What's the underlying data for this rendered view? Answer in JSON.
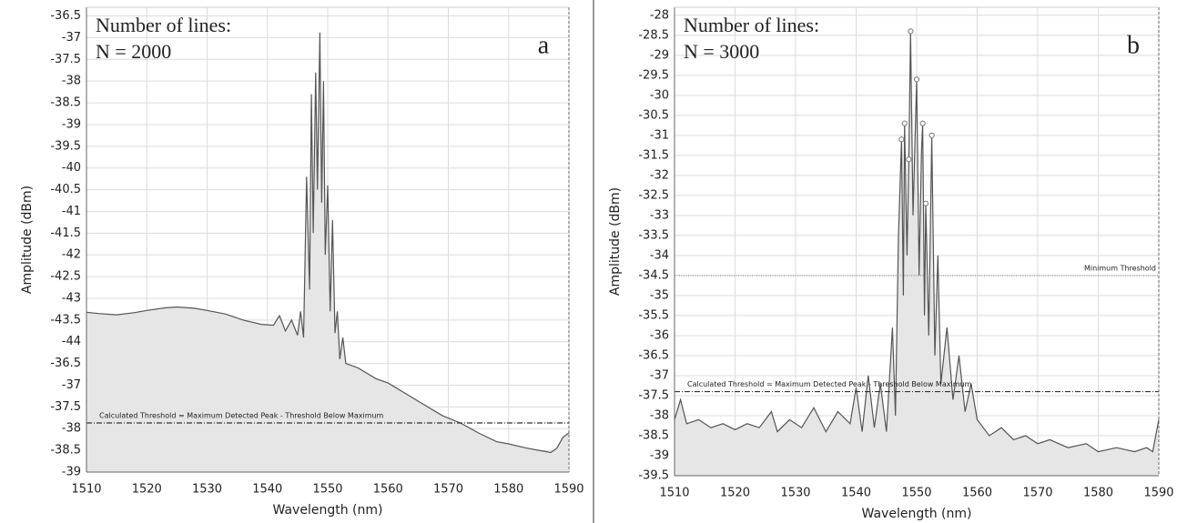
{
  "chart_data": [
    {
      "type": "area",
      "panel_label": "a",
      "note_lines": [
        "Number of lines:",
        "N = 2000"
      ],
      "xlabel": "Wavelength (nm)",
      "ylabel": "Amplitude (dBm)",
      "xlim": [
        1510,
        1590
      ],
      "xticks": [
        1510,
        1520,
        1530,
        1540,
        1550,
        1560,
        1570,
        1580,
        1590
      ],
      "ylim": [
        -47,
        -36.3
      ],
      "yticks": [
        -36.5,
        -37,
        -37.5,
        -38,
        -38.5,
        -39,
        -39.5,
        -40,
        -40.5,
        -41,
        -41.5,
        -42,
        -42.5,
        -43,
        -43.5,
        -44,
        {
          "value": -44.5,
          "label": "-36.5"
        },
        {
          "value": -45,
          "label": "-37"
        },
        {
          "value": -45.5,
          "label": "-37.5"
        },
        {
          "value": -46,
          "label": "-38"
        },
        {
          "value": -46.5,
          "label": "-38.5"
        },
        {
          "value": -47,
          "label": "-39"
        }
      ],
      "grid": true,
      "color": "#555555",
      "fill": "#e6e6e6",
      "x": [
        1510,
        1512,
        1515,
        1518,
        1520,
        1523,
        1525,
        1528,
        1530,
        1533,
        1536,
        1539,
        1541,
        1542,
        1543,
        1544,
        1545,
        1545.5,
        1546,
        1546.5,
        1547,
        1547.3,
        1547.6,
        1548,
        1548.3,
        1548.7,
        1549,
        1549.3,
        1549.6,
        1550,
        1550.4,
        1550.8,
        1551.2,
        1551.6,
        1552,
        1552.5,
        1553,
        1555,
        1558,
        1560,
        1563,
        1566,
        1569,
        1572,
        1575,
        1578,
        1580,
        1583,
        1585,
        1587,
        1588,
        1589,
        1590
      ],
      "values": [
        -43.32,
        -43.35,
        -43.38,
        -43.33,
        -43.28,
        -43.22,
        -43.2,
        -43.23,
        -43.28,
        -43.36,
        -43.5,
        -43.6,
        -43.62,
        -43.4,
        -43.75,
        -43.5,
        -43.85,
        -43.3,
        -43.9,
        -40.2,
        -42.8,
        -38.3,
        -41.5,
        -37.8,
        -40.5,
        -36.88,
        -40.8,
        -38.0,
        -42.0,
        -40.4,
        -43.3,
        -41.2,
        -43.8,
        -43.3,
        -44.4,
        -43.9,
        -44.5,
        -44.6,
        -44.85,
        -44.95,
        -45.2,
        -45.45,
        -45.7,
        -45.87,
        -46.1,
        -46.3,
        -46.35,
        -46.45,
        -46.5,
        -46.55,
        -46.45,
        -46.2,
        -46.1
      ],
      "thresholds": [
        {
          "label": "Calculated Threshold = Maximum Detected Peak - Threshold Below Maximum",
          "value": -45.87,
          "style": "dashdot",
          "label_side": "left"
        }
      ]
    },
    {
      "type": "area",
      "panel_label": "b",
      "note_lines": [
        "Number of lines:",
        "N = 3000"
      ],
      "xlabel": "Wavelength (nm)",
      "ylabel": "Amplitude (dBm)",
      "xlim": [
        1510,
        1590
      ],
      "xticks": [
        1510,
        1520,
        1530,
        1540,
        1550,
        1560,
        1570,
        1580,
        1590
      ],
      "ylim": [
        -39.5,
        -27.8
      ],
      "yticks": [
        -28,
        -28.5,
        -29,
        -29.5,
        -30,
        -30.5,
        -31,
        -31.5,
        -32,
        -32.5,
        -33,
        -33.5,
        -34,
        -34.5,
        -35,
        -35.5,
        -36,
        -36.5,
        -37,
        -37.5,
        -38,
        -38.5,
        -39,
        -39.5
      ],
      "grid": true,
      "color": "#555555",
      "fill": "#e6e6e6",
      "x": [
        1510,
        1511,
        1512,
        1514,
        1516,
        1518,
        1520,
        1522,
        1524,
        1526,
        1527,
        1529,
        1531,
        1533,
        1535,
        1537,
        1539,
        1540,
        1541,
        1542,
        1543,
        1544,
        1545,
        1546,
        1546.5,
        1547,
        1547.5,
        1547.8,
        1548,
        1548.4,
        1548.7,
        1549,
        1549.4,
        1550,
        1550.4,
        1550.8,
        1551,
        1551.3,
        1551.5,
        1552,
        1552.5,
        1553,
        1553.5,
        1554,
        1555,
        1556,
        1557,
        1558,
        1559,
        1560,
        1562,
        1564,
        1566,
        1568,
        1570,
        1572,
        1575,
        1578,
        1580,
        1583,
        1586,
        1588,
        1589,
        1590
      ],
      "values": [
        -38.1,
        -37.6,
        -38.2,
        -38.1,
        -38.3,
        -38.2,
        -38.35,
        -38.2,
        -38.3,
        -37.9,
        -38.4,
        -38.1,
        -38.3,
        -37.8,
        -38.4,
        -37.9,
        -38.2,
        -37.3,
        -38.4,
        -37.0,
        -38.3,
        -37.2,
        -38.4,
        -35.8,
        -38.0,
        -33.5,
        -31.1,
        -35.0,
        -30.7,
        -34.0,
        -31.6,
        -28.4,
        -33.0,
        -29.6,
        -34.5,
        -31.4,
        -30.7,
        -35.5,
        -32.7,
        -36.0,
        -31.0,
        -36.5,
        -34.0,
        -37.2,
        -35.8,
        -37.6,
        -36.5,
        -37.9,
        -37.2,
        -38.1,
        -38.5,
        -38.3,
        -38.6,
        -38.5,
        -38.7,
        -38.6,
        -38.8,
        -38.7,
        -38.9,
        -38.8,
        -38.9,
        -38.8,
        -38.9,
        -38.1
      ],
      "peaks": {
        "x": [
          1547.5,
          1548,
          1548.7,
          1549,
          1550,
          1551,
          1551.5,
          1552.5
        ],
        "values": [
          -31.1,
          -30.7,
          -31.6,
          -28.4,
          -29.6,
          -30.7,
          -32.7,
          -31.0
        ]
      },
      "thresholds": [
        {
          "label": "Calculated Threshold = Maximum Detected Peak - Threshold Below Maximum",
          "value": -37.4,
          "style": "dashdot",
          "label_side": "left"
        },
        {
          "label": "Minimum Threshold",
          "value": -34.5,
          "style": "dotted",
          "label_side": "right"
        }
      ]
    }
  ]
}
